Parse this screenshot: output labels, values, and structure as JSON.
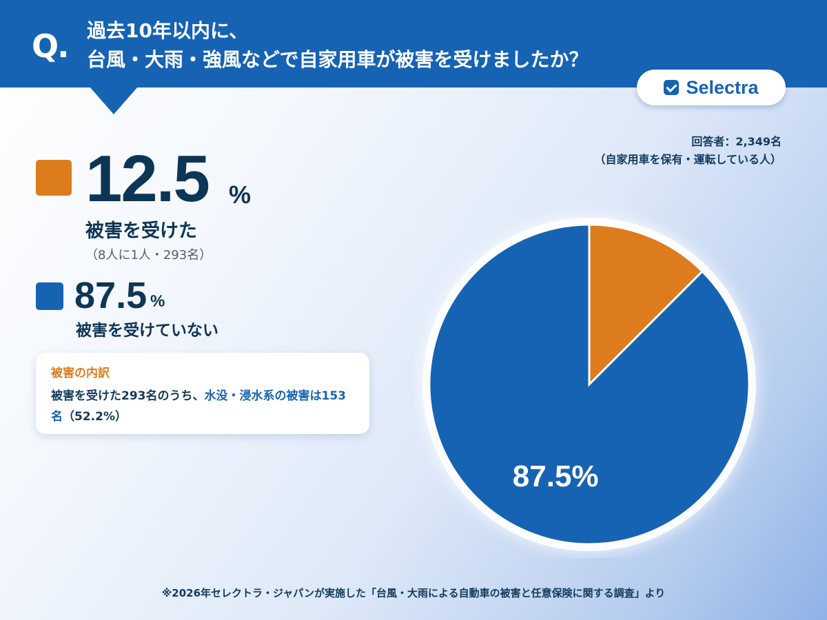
{
  "header": {
    "q_mark": "Q.",
    "question_line1": "過去10年以内に、",
    "question_line2": "台風・大雨・強風などで自家用車が被害を受けましたか？"
  },
  "brand": {
    "name": "Selectra",
    "icon": "checkbox-icon"
  },
  "summary": {
    "damaged": {
      "value": "12.5",
      "unit": "%",
      "label": "被害を受けた",
      "sub": "（8人に1人・293名）"
    },
    "undamaged": {
      "value": "87.5",
      "unit": "%",
      "label": "被害を受けていない"
    }
  },
  "breakdown": {
    "title": "被害の内訳",
    "text_plain": "被害を受けた293名のうち、",
    "text_highlight": "水没・浸水系の被害は153名",
    "text_tail": "（52.2%）"
  },
  "respondents": {
    "line1": "回答者：2,349名",
    "line2": "（自家用車を保有・運転している人）"
  },
  "footnote": "※2026年セレクトラ・ジャパンが実施した「台風・大雨による自動車の被害と任意保険に関する調査」より",
  "colors": {
    "damaged": "#dd7c1c",
    "undamaged": "#1663b4",
    "header": "#1663b4"
  },
  "chart_data": {
    "type": "pie",
    "slices": [
      {
        "name": "被害を受けた",
        "value": 12.5,
        "label": "12.5%",
        "color": "#dd7c1c"
      },
      {
        "name": "被害を受けていない",
        "value": 87.5,
        "label": "87.5%",
        "color": "#1663b4"
      }
    ],
    "start_angle": "12 o'clock",
    "direction": "clockwise"
  }
}
